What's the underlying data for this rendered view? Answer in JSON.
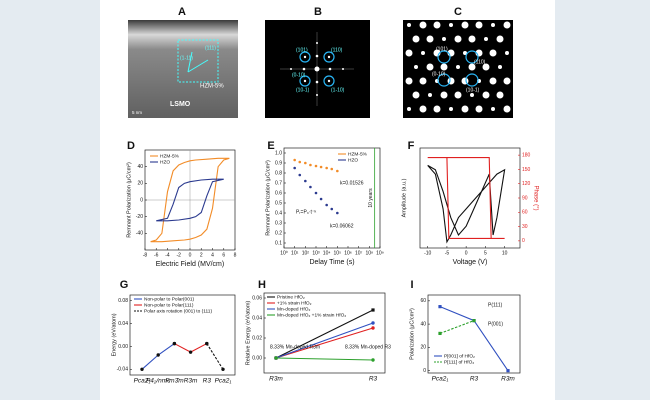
{
  "panel_labels": [
    "A",
    "B",
    "C",
    "D",
    "E",
    "F",
    "G",
    "H",
    "I"
  ],
  "images": {
    "A": [
      "HZM-5%",
      "LSMO",
      "5 nm",
      "(111)",
      "(1-11)"
    ],
    "B": [
      "(101)",
      "(110)",
      "(0-10)",
      "(1-10)",
      "(10-1)"
    ],
    "C": [
      "(101)",
      "(110)",
      "(0-10)",
      "(10-1)"
    ]
  },
  "chart_data": [
    {
      "type": "line",
      "xlabel": "Electric Field (MV/cm)",
      "ylabel": "Remnant Polarization (μC/cm²)",
      "xlim": [
        -8,
        8
      ],
      "xticks": [
        -8,
        -6,
        -4,
        -2,
        0,
        2,
        4,
        6,
        8
      ],
      "ylim": [
        -60,
        60
      ],
      "yticks": [
        -40,
        -20,
        0,
        20,
        40
      ],
      "legend": "upper left",
      "series": [
        {
          "name": "HZM-5%",
          "color": "#f28c28",
          "x": [
            7,
            5,
            3,
            1,
            0,
            -1,
            -2,
            -3,
            -4,
            -5,
            -6,
            -7,
            -5,
            -3,
            -1,
            0,
            1,
            2,
            3,
            4,
            5,
            6,
            7
          ],
          "values": [
            50,
            50,
            49,
            48,
            47,
            45,
            42,
            35,
            10,
            -40,
            -48,
            -50,
            -50,
            -49,
            -48,
            -47,
            -45,
            -42,
            -35,
            -10,
            40,
            48,
            50
          ]
        },
        {
          "name": "HZO",
          "color": "#2b3a8f",
          "x": [
            6,
            4,
            2,
            0,
            -1,
            -2,
            -3,
            -4,
            -6,
            -4,
            -2,
            0,
            1,
            2,
            3,
            4,
            6
          ],
          "values": [
            25,
            25,
            24,
            22,
            20,
            15,
            -5,
            -22,
            -25,
            -25,
            -24,
            -22,
            -20,
            -15,
            5,
            22,
            25
          ]
        }
      ]
    },
    {
      "type": "scatter",
      "xlabel": "Delay Time (s)",
      "ylabel": "Remnant Polarization (μC/cm²)",
      "xscale": "log",
      "xlim": [
        1,
        1000000000
      ],
      "xticks": [
        {
          "value": 1,
          "label": "10⁰"
        },
        {
          "value": 10,
          "label": "10¹"
        },
        {
          "value": 100,
          "label": "10²"
        },
        {
          "value": 1000,
          "label": "10³"
        },
        {
          "value": 10000,
          "label": "10⁴"
        },
        {
          "value": 100000,
          "label": "10⁵"
        },
        {
          "value": 1000000,
          "label": "10⁶"
        },
        {
          "value": 10000000,
          "label": "10⁷"
        },
        {
          "value": 100000000,
          "label": "10⁸"
        },
        {
          "value": 1000000000,
          "label": "10⁹"
        }
      ],
      "ylim": [
        0.05,
        1.05
      ],
      "yticks": [
        0.1,
        0.2,
        0.3,
        0.4,
        0.5,
        0.6,
        0.7,
        0.8,
        0.9,
        {
          "value": 1,
          "label": "1.0"
        }
      ],
      "legend": "upper right",
      "reference_line": {
        "x": 315360000,
        "color": "#2ca02c",
        "label": "10 years"
      },
      "annotations": [
        "k=0.01526",
        "k=0.06062",
        "Pᵣ=P₀·t⁻ᵏ"
      ],
      "series": [
        {
          "name": "HZM-5%",
          "color": "#f28c28",
          "x": [
            10,
            30,
            100,
            300,
            1000,
            3000,
            10000,
            30000,
            100000
          ],
          "values": [
            0.93,
            0.91,
            0.9,
            0.88,
            0.87,
            0.86,
            0.85,
            0.84,
            0.82
          ]
        },
        {
          "name": "HZO",
          "color": "#2b3a8f",
          "x": [
            10,
            30,
            100,
            300,
            1000,
            3000,
            10000,
            30000,
            100000
          ],
          "values": [
            0.85,
            0.78,
            0.72,
            0.66,
            0.6,
            0.54,
            0.48,
            0.44,
            0.4
          ]
        }
      ]
    },
    {
      "type": "line",
      "xlabel": "Voltage (V)",
      "ylabel": "Amplitude (a.u.)",
      "y2label": "Phase (°)",
      "xlim": [
        -12,
        14
      ],
      "xticks": [
        -10,
        -5,
        0,
        5,
        10
      ],
      "ylim": [
        -0.05,
        1.1
      ],
      "yticks": [],
      "y2lim": [
        -15,
        195
      ],
      "y2ticks": [
        0,
        30,
        60,
        90,
        120,
        150,
        180
      ],
      "series": [
        {
          "color": "#111111",
          "x": [
            -10,
            -8,
            -6,
            -4,
            -2,
            0,
            2,
            4,
            6,
            7,
            8,
            10,
            8,
            6,
            4,
            2,
            0,
            -2,
            -4,
            -5,
            -6,
            -8,
            -10
          ],
          "values": [
            0.9,
            0.85,
            0.6,
            0.3,
            0.1,
            0.2,
            0.4,
            0.6,
            0.8,
            0.1,
            0.3,
            0.85,
            0.8,
            0.7,
            0.6,
            0.5,
            0.4,
            0.3,
            0.1,
            0.02,
            0.4,
            0.8,
            0.9
          ]
        },
        {
          "color": "#e02020",
          "axis": "y2",
          "x": [
            -10,
            -5,
            -4.5,
            10,
            6.5,
            6,
            -10
          ],
          "values": [
            175,
            175,
            5,
            5,
            5,
            175,
            175
          ]
        }
      ]
    },
    {
      "type": "line",
      "ylabel": "Energy (eV/atom)",
      "categories": [
        "Pca2₁",
        "P4₂/nmc",
        "Fm3̄m",
        "R3m",
        "R3",
        "Pca2₁"
      ],
      "ylim": [
        -0.05,
        0.09
      ],
      "yticks": [
        -0.04,
        {
          "value": 0,
          "label": "0.00"
        },
        0.04,
        0.08
      ],
      "legend": "upper left",
      "series": [
        {
          "name": "Non-polar to Polar(001)",
          "color": "#3050c0",
          "marker": "circle",
          "values": [
            -0.04,
            -0.015,
            0.005,
            null,
            null,
            null
          ]
        },
        {
          "name": "Non-polar to Polar(111)",
          "color": "#e02020",
          "marker": "circle",
          "values": [
            null,
            null,
            0.005,
            -0.01,
            0.005,
            null
          ]
        },
        {
          "name": "Polar axis rotation (001) to (111)",
          "color": "#111111",
          "dash": true,
          "marker": "circle",
          "values": [
            null,
            null,
            null,
            null,
            0.005,
            -0.04
          ]
        }
      ]
    },
    {
      "type": "line",
      "ylabel": "Relative Energy (eV/atom)",
      "categories": [
        "R3m",
        "R3"
      ],
      "ylim": [
        -0.015,
        0.065
      ],
      "yticks": [
        {
          "value": 0,
          "label": "0.00"
        },
        0.02,
        0.04,
        0.06
      ],
      "legend": "upper left",
      "annotations": [
        "8.33% Mn-doped R3m",
        "8.33% Mn-doped R3"
      ],
      "series": [
        {
          "name": "Pristine HfO₂",
          "color": "#111111",
          "marker": "square",
          "values": [
            0,
            0.048
          ]
        },
        {
          "name": "+1% strain HfO₂",
          "color": "#e02020",
          "marker": "circle",
          "values": [
            0,
            0.03
          ]
        },
        {
          "name": "Mn-doped HfO₂",
          "color": "#3050c0",
          "marker": "circle",
          "values": [
            0,
            0.035
          ]
        },
        {
          "name": "Mn-doped HfO₂ +1% strain HfO₂",
          "color": "#2ca02c",
          "marker": "circle",
          "values": [
            0,
            -0.002
          ]
        }
      ]
    },
    {
      "type": "line",
      "ylabel": "Polarization (μC/cm²)",
      "categories": [
        "Pca2₁",
        "R3",
        "R3m"
      ],
      "ylim": [
        -2,
        65
      ],
      "yticks": [
        0,
        20,
        40,
        60
      ],
      "legend": "lower left",
      "annotations": [
        "P(111)",
        "P(001)"
      ],
      "series": [
        {
          "name": "P[001] of HfO₂",
          "color": "#3050c0",
          "marker": "square",
          "values": [
            55,
            43,
            0
          ]
        },
        {
          "name": "P[111] of HfO₂",
          "color": "#2ca02c",
          "marker": "square",
          "dash": true,
          "values": [
            32,
            43,
            null
          ]
        }
      ]
    }
  ]
}
